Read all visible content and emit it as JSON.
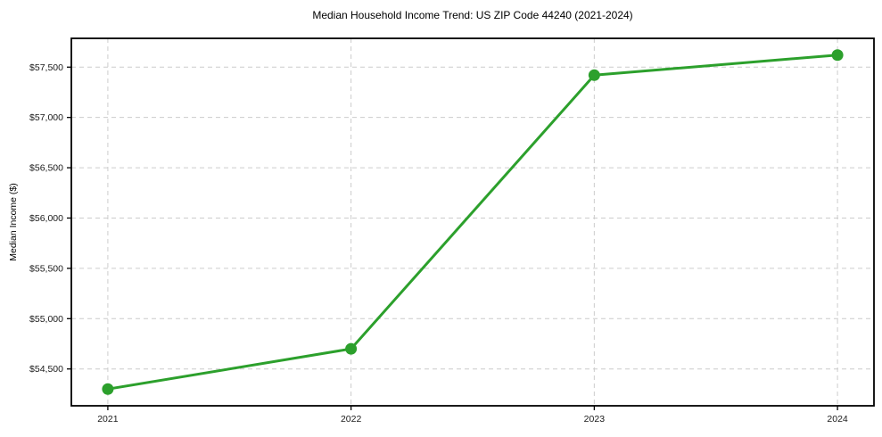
{
  "figure": {
    "title": "Median Household Income Trend: US ZIP Code 44240 (2021-2024)",
    "ylabel": "Median Income ($)"
  },
  "chart_data": {
    "type": "line",
    "title": "Median Household Income Trend: US ZIP Code 44240 (2021-2024)",
    "xlabel": "",
    "ylabel": "Median Income ($)",
    "x": [
      2021,
      2022,
      2023,
      2024
    ],
    "series": [
      {
        "name": "Median Household Income",
        "values": [
          54300,
          54700,
          57420,
          57620
        ]
      }
    ],
    "x_tick_labels": [
      "2021",
      "2022",
      "2023",
      "2024"
    ],
    "y_tick_values": [
      54500,
      55000,
      55500,
      56000,
      56500,
      57000,
      57500
    ],
    "y_tick_labels": [
      "$54,500",
      "$55,000",
      "$55,500",
      "$56,000",
      "$56,500",
      "$57,000",
      "$57,500"
    ],
    "xlim": [
      2020.85,
      2024.15
    ],
    "ylim": [
      54134,
      57786
    ],
    "grid": true,
    "grid_style": "dashed",
    "legend_position": "none",
    "line_color": "#2ca02c",
    "marker": "circle",
    "marker_radius": 6.5,
    "line_width": 3,
    "grid_color": "#cccccc",
    "spine_color": "#000000",
    "tick_label_color": "#1a1a1a",
    "background": "#ffffff"
  }
}
